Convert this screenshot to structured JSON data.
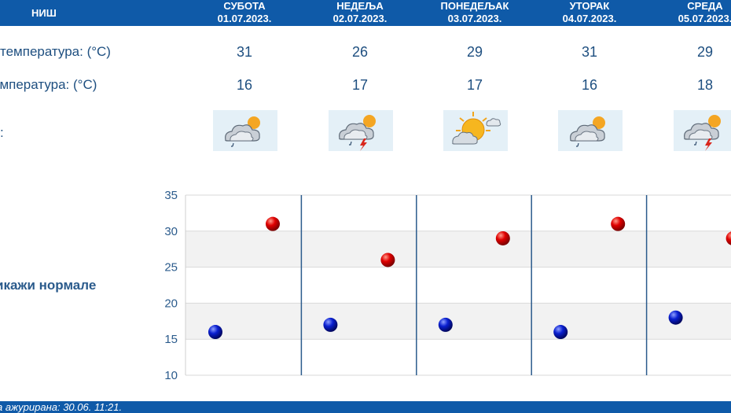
{
  "header": {
    "city": "НИШ",
    "days": [
      {
        "day": "СУБОТА",
        "date": "01.07.2023."
      },
      {
        "day": "НЕДЕЉА",
        "date": "02.07.2023."
      },
      {
        "day": "ПОНЕДЕЉАК",
        "date": "03.07.2023."
      },
      {
        "day": "УТОРАК",
        "date": "04.07.2023."
      },
      {
        "day": "СРЕДА",
        "date": "05.07.2023."
      }
    ]
  },
  "rows": {
    "max_label": "температура: (°C)",
    "min_label": "емпература: (°C)",
    "weather_label": ":"
  },
  "max_temps": [
    "31",
    "26",
    "29",
    "31",
    "29"
  ],
  "min_temps": [
    "16",
    "17",
    "17",
    "16",
    "18"
  ],
  "weather_icons": [
    "cloud-sun-rain-icon",
    "cloud-sun-thunderstorm-icon",
    "sun-cloud-icon",
    "cloud-sun-rain-icon",
    "cloud-sun-thunderstorm-icon"
  ],
  "normals_link": "икажи нормале",
  "footer": {
    "updated": "а ажурирана:  30.06.  11:21."
  },
  "colors": {
    "header": "#0f5aa8",
    "text": "#1e4f80",
    "max_point": "#d40000",
    "min_point": "#0a1fc8",
    "day_divider": "#2b5b8c"
  },
  "chart_data": {
    "type": "scatter",
    "categories": [
      "01.07.2023.",
      "02.07.2023.",
      "03.07.2023.",
      "04.07.2023.",
      "05.07.2023."
    ],
    "series": [
      {
        "values": [
          31,
          26,
          29,
          31,
          29
        ]
      },
      {
        "values": [
          16,
          17,
          17,
          16,
          18
        ]
      }
    ],
    "ylim": [
      10,
      35
    ],
    "yticks": [
      "35",
      "30",
      "25",
      "20",
      "15",
      "10"
    ],
    "grid": true,
    "banded_background": true
  }
}
